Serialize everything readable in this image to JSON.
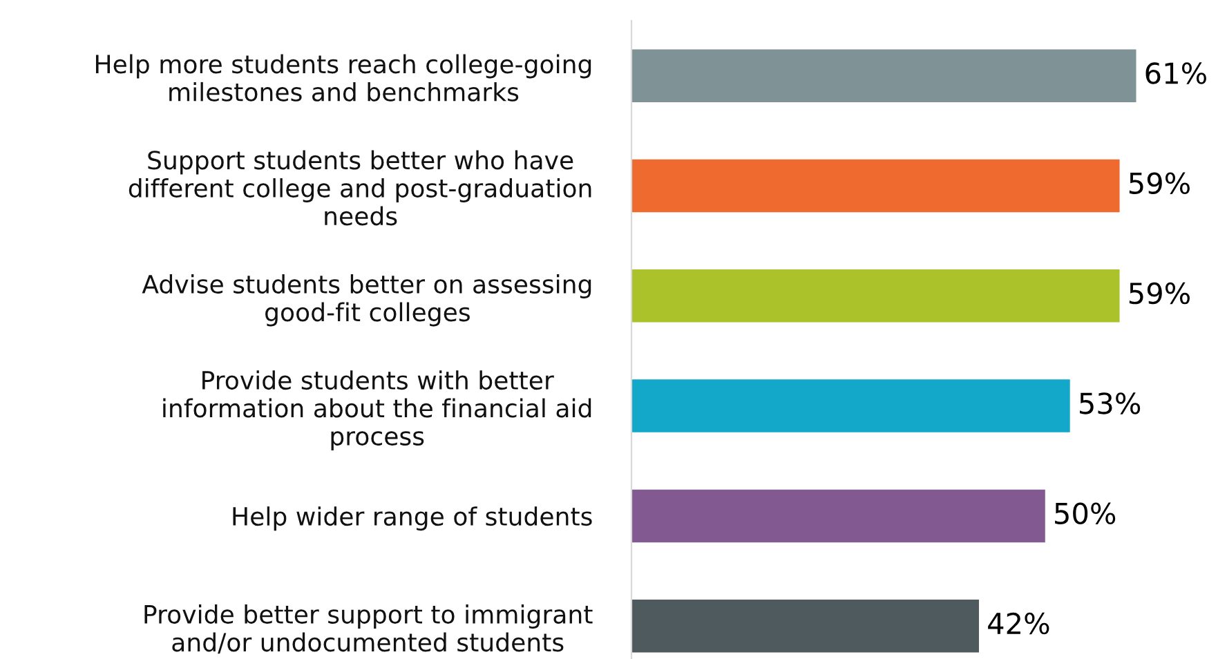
{
  "chart_data": {
    "type": "bar",
    "orientation": "horizontal",
    "categories": [
      "Help more students reach college-going\nmilestones and benchmarks",
      "Support students better who have\ndifferent college and post-graduation\nneeds",
      "Advise students better on assessing\ngood-fit colleges",
      "Provide students with better\ninformation about the financial aid\nprocess",
      "Help wider range of students",
      "Provide better support to immigrant\nand/or undocumented students"
    ],
    "values": [
      61,
      59,
      59,
      53,
      50,
      42
    ],
    "colors": [
      "#7f9397",
      "#ef6a2f",
      "#acc22b",
      "#13a7c9",
      "#835992",
      "#4f5a5f"
    ],
    "value_labels": [
      "61%",
      "59%",
      "59%",
      "53%",
      "50%",
      "42%"
    ],
    "tick_labels": "y",
    "grid": false,
    "legend": false
  }
}
